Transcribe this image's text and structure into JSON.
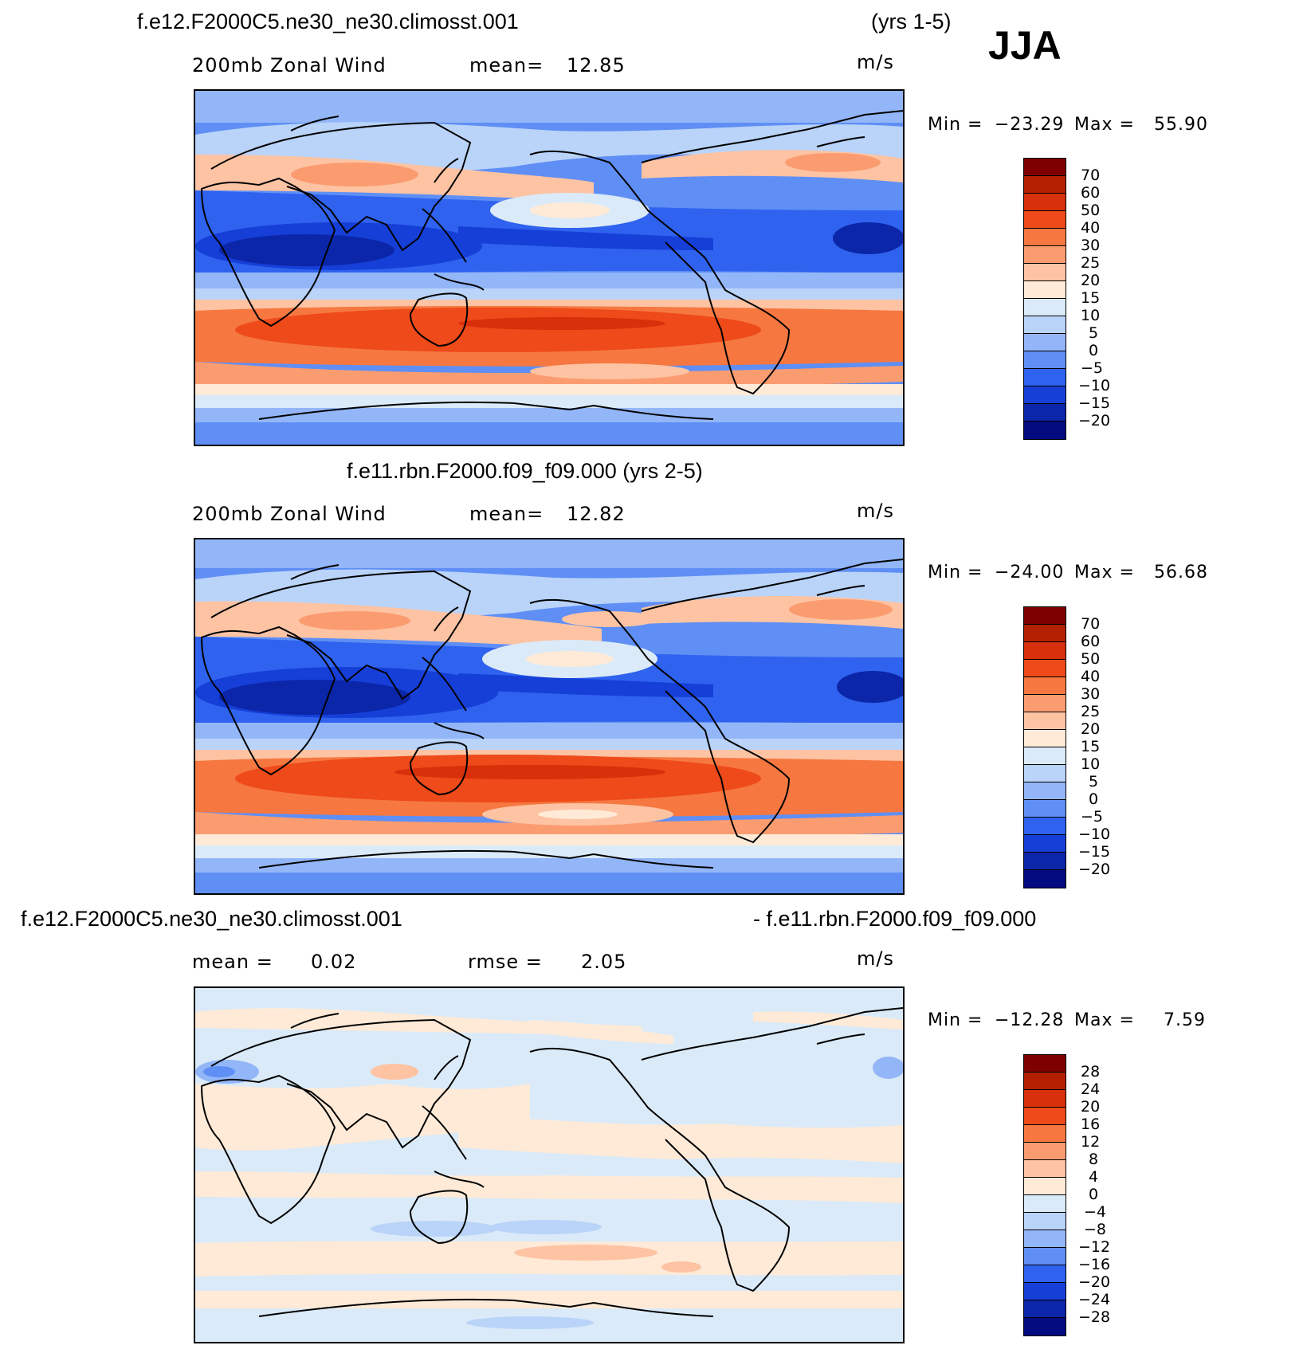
{
  "season": "JJA",
  "panels": [
    {
      "title_left": "f.e12.F2000C5.ne30_ne30.climosst.001",
      "title_right": "(yrs 1-5)",
      "variable": "200mb Zonal Wind",
      "stat_label": "mean=",
      "stat_value": "12.85",
      "units": "m/s",
      "min_label": "Min =",
      "min_value": "−23.29",
      "max_label": "Max =",
      "max_value": "55.90"
    },
    {
      "title": "f.e11.rbn.F2000.f09_f09.000 (yrs 2-5)",
      "variable": "200mb Zonal Wind",
      "stat_label": "mean=",
      "stat_value": "12.82",
      "units": "m/s",
      "min_label": "Min =",
      "min_value": "−24.00",
      "max_label": "Max =",
      "max_value": "56.68"
    },
    {
      "title_left": "f.e12.F2000C5.ne30_ne30.climosst.001",
      "title_right": "- f.e11.rbn.F2000.f09_f09.000",
      "mean_label": "mean =",
      "mean_value": "0.02",
      "rmse_label": "rmse =",
      "rmse_value": "2.05",
      "units": "m/s",
      "min_label": "Min =",
      "min_value": "−12.28",
      "max_label": "Max =",
      "max_value": "7.59"
    }
  ],
  "colorbar_levels": [
    "70",
    "60",
    "50",
    "40",
    "30",
    "25",
    "20",
    "15",
    "10",
    "5",
    "0",
    "−5",
    "−10",
    "−15",
    "−20"
  ],
  "diff_colorbar_levels": [
    "28",
    "24",
    "20",
    "16",
    "12",
    "8",
    "4",
    "0",
    "−4",
    "−8",
    "−12",
    "−16",
    "−20",
    "−24",
    "−28"
  ],
  "colors": {
    "c16": "#7f0000",
    "c15": "#b22000",
    "c14": "#d7300a",
    "c13": "#ee4a1a",
    "c12": "#f67840",
    "c11": "#fb9c70",
    "c10": "#fdc3a3",
    "c9": "#feead7",
    "c8": "#dbeaf8",
    "c7": "#b9d3f9",
    "c6": "#93b6f8",
    "c5": "#5f8ff5",
    "c4": "#2f62ee",
    "c3": "#163fd8",
    "c2": "#0b26a8",
    "c1": "#040a80"
  },
  "chart_data": [
    {
      "type": "heatmap",
      "title": "f.e12.F2000C5.ne30_ne30.climosst.001 (yrs 1-5)",
      "variable": "200mb Zonal Wind",
      "units": "m/s",
      "season": "JJA",
      "mean": 12.85,
      "min": -23.29,
      "max": 55.9,
      "contour_levels": [
        -20,
        -15,
        -10,
        -5,
        0,
        5,
        10,
        15,
        20,
        25,
        30,
        40,
        50,
        60,
        70
      ]
    },
    {
      "type": "heatmap",
      "title": "f.e11.rbn.F2000.f09_f09.000 (yrs 2-5)",
      "variable": "200mb Zonal Wind",
      "units": "m/s",
      "season": "JJA",
      "mean": 12.82,
      "min": -24.0,
      "max": 56.68,
      "contour_levels": [
        -20,
        -15,
        -10,
        -5,
        0,
        5,
        10,
        15,
        20,
        25,
        30,
        40,
        50,
        60,
        70
      ]
    },
    {
      "type": "heatmap",
      "title": "f.e12.F2000C5.ne30_ne30.climosst.001 - f.e11.rbn.F2000.f09_f09.000",
      "units": "m/s",
      "season": "JJA",
      "mean": 0.02,
      "rmse": 2.05,
      "min": -12.28,
      "max": 7.59,
      "contour_levels": [
        -28,
        -24,
        -20,
        -16,
        -12,
        -8,
        -4,
        0,
        4,
        8,
        12,
        16,
        20,
        24,
        28
      ]
    }
  ]
}
